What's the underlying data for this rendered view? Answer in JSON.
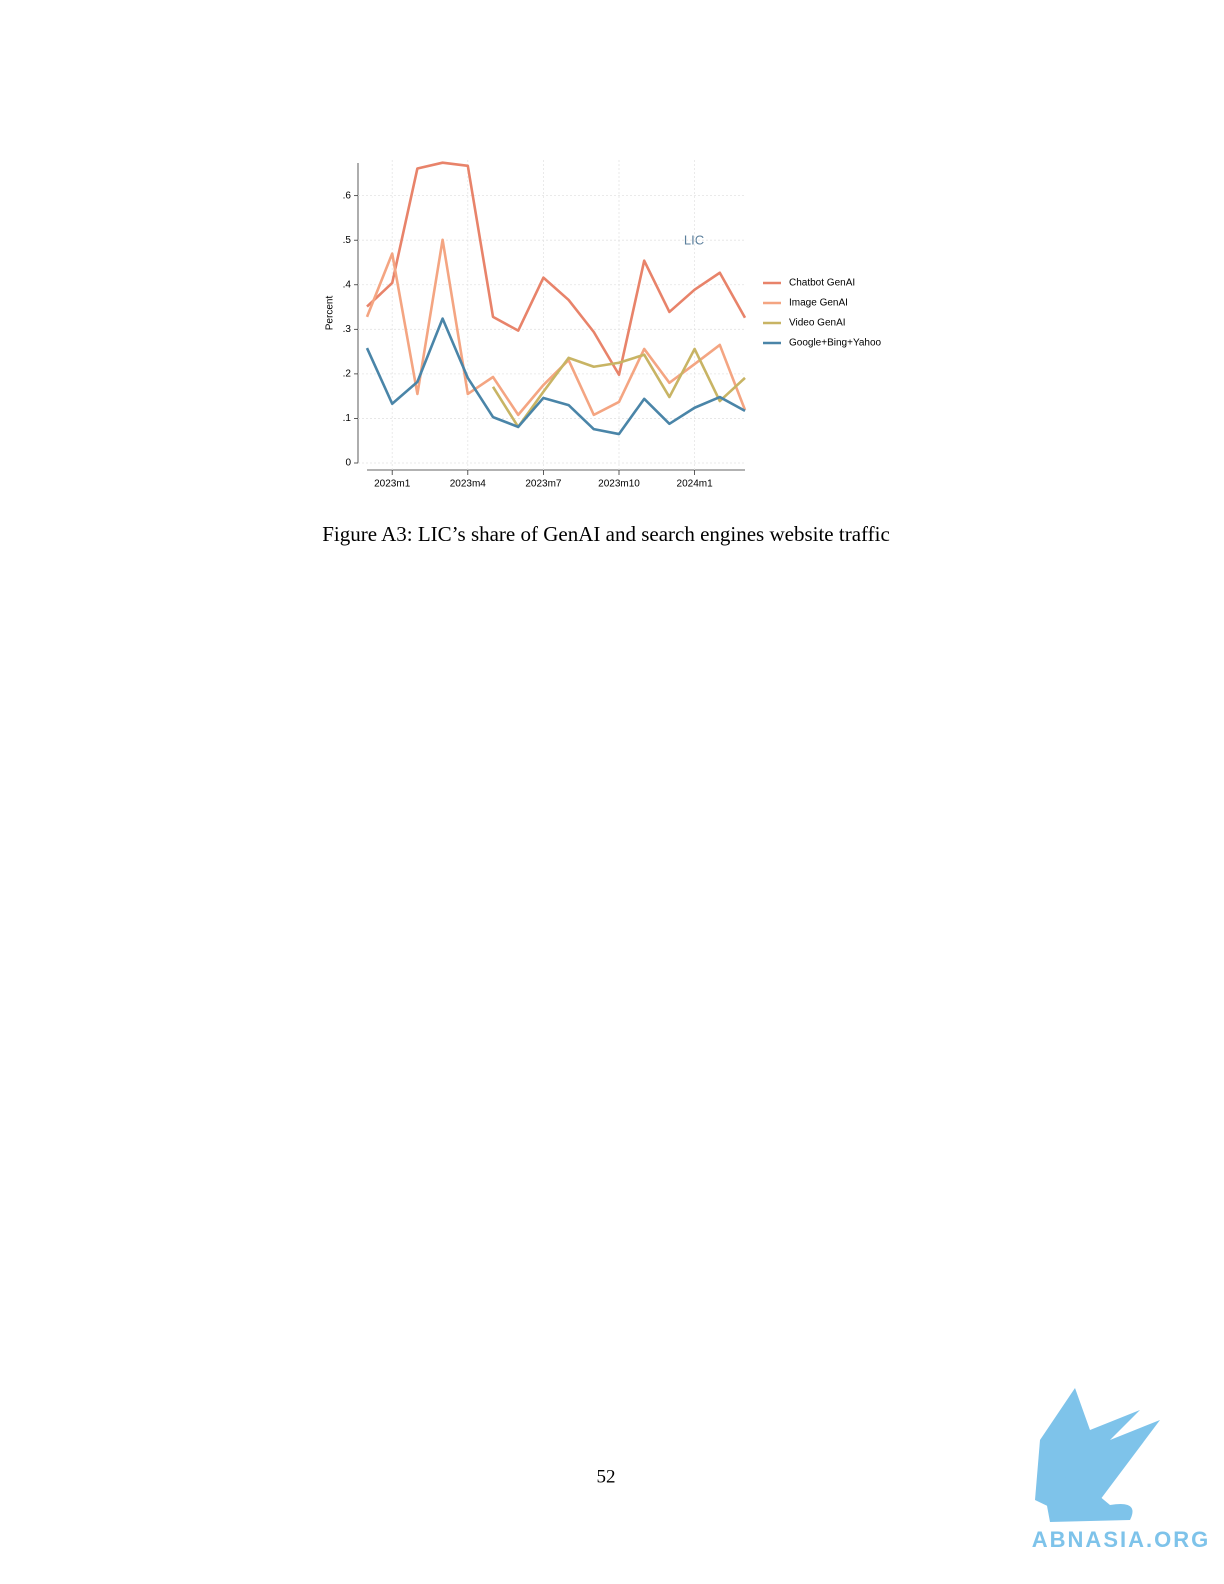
{
  "chart_data": {
    "type": "line",
    "ylabel": "Percent",
    "annotation": "LIC",
    "categories": [
      null,
      "2023m1",
      null,
      null,
      "2023m4",
      null,
      null,
      "2023m7",
      null,
      null,
      "2023m10",
      null,
      null,
      "2024m1",
      null,
      null
    ],
    "series": [
      {
        "name": "Chatbot GenAI",
        "color": "#e8836a",
        "values": [
          0.351,
          0.404,
          0.661,
          0.674,
          0.667,
          0.328,
          0.297,
          0.416,
          0.366,
          0.294,
          0.198,
          0.454,
          0.339,
          0.389,
          0.427,
          0.326
        ]
      },
      {
        "name": "Image GenAI",
        "color": "#f4a582",
        "values": [
          0.328,
          0.47,
          0.155,
          0.501,
          0.155,
          0.193,
          0.108,
          0.175,
          0.231,
          0.108,
          0.137,
          0.256,
          0.18,
          0.222,
          0.265,
          0.119
        ]
      },
      {
        "name": "Video GenAI",
        "color": "#c8b464",
        "values": [
          null,
          null,
          null,
          null,
          null,
          0.171,
          0.081,
          0.16,
          0.236,
          0.216,
          0.225,
          0.243,
          0.148,
          0.256,
          0.139,
          0.191
        ]
      },
      {
        "name": "Google+Bing+Yahoo",
        "color": "#4a85a8",
        "values": [
          0.258,
          0.133,
          0.182,
          0.324,
          0.191,
          0.103,
          0.081,
          0.146,
          0.13,
          0.076,
          0.065,
          0.144,
          0.088,
          0.124,
          0.148,
          0.117
        ]
      }
    ],
    "ylim": [
      0,
      0.68
    ],
    "yticks": [
      0,
      {
        "value": 0.1,
        "label": ".1"
      },
      {
        "value": 0.2,
        "label": ".2"
      },
      {
        "value": 0.3,
        "label": ".3"
      },
      {
        "value": 0.4,
        "label": ".4"
      },
      {
        "value": 0.5,
        "label": ".5"
      },
      {
        "value": 0.6,
        "label": ".6"
      }
    ],
    "grid": true,
    "legend": "right"
  },
  "caption": "Figure A3: LIC’s share of GenAI and search engines website traffic",
  "page_number": "52",
  "watermark": "ABNASIA.ORG"
}
